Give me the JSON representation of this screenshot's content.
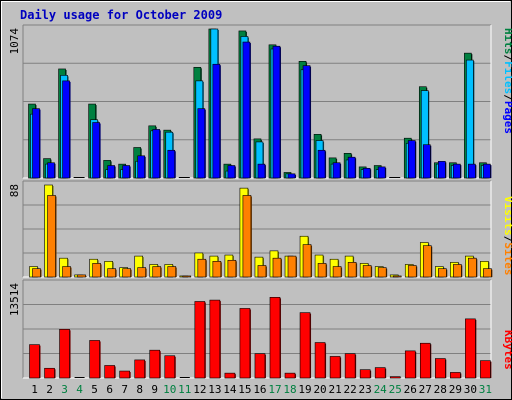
{
  "chart_data": [
    {
      "type": "bar",
      "panel": "hits-files-pages",
      "title": "Daily usage for October 2009",
      "categories": [
        "1",
        "2",
        "3",
        "4",
        "5",
        "6",
        "7",
        "8",
        "9",
        "10",
        "11",
        "12",
        "13",
        "14",
        "15",
        "16",
        "17",
        "18",
        "19",
        "20",
        "21",
        "22",
        "23",
        "24",
        "25",
        "26",
        "27",
        "28",
        "29",
        "30",
        "31"
      ],
      "weekend_days": [
        "3",
        "4",
        "10",
        "11",
        "17",
        "18",
        "24",
        "25",
        "31"
      ],
      "ymax_label": "1074",
      "ylim": [
        0,
        1074
      ],
      "grid": true,
      "legend": [
        "Pages",
        "Files",
        "Hits"
      ],
      "series": [
        {
          "name": "Hits",
          "color": "#008040",
          "values": [
            533,
            140,
            786,
            0,
            533,
            127,
            100,
            220,
            376,
            345,
            0,
            798,
            1074,
            100,
            1060,
            282,
            960,
            40,
            841,
            315,
            145,
            178,
            80,
            90,
            0,
            287,
            658,
            110,
            110,
            900,
            110
          ]
        },
        {
          "name": "Files",
          "color": "#00C0FF",
          "values": [
            460,
            100,
            740,
            0,
            420,
            60,
            60,
            120,
            340,
            330,
            0,
            700,
            1074,
            50,
            1020,
            260,
            930,
            30,
            780,
            270,
            100,
            130,
            60,
            60,
            0,
            250,
            630,
            100,
            90,
            850,
            90
          ]
        },
        {
          "name": "Pages",
          "color": "#0000FF",
          "values": [
            500,
            110,
            700,
            0,
            400,
            90,
            90,
            160,
            350,
            200,
            0,
            500,
            820,
            90,
            980,
            100,
            950,
            30,
            810,
            200,
            110,
            150,
            70,
            80,
            0,
            270,
            240,
            120,
            100,
            100,
            100
          ]
        }
      ]
    },
    {
      "type": "bar",
      "panel": "visits-sites",
      "categories": [
        "1",
        "2",
        "3",
        "4",
        "5",
        "6",
        "7",
        "8",
        "9",
        "10",
        "11",
        "12",
        "13",
        "14",
        "15",
        "16",
        "17",
        "18",
        "19",
        "20",
        "21",
        "22",
        "23",
        "24",
        "25",
        "26",
        "27",
        "28",
        "29",
        "30",
        "31"
      ],
      "ymax_label": "88",
      "ylim": [
        0,
        88
      ],
      "grid": true,
      "legend": [
        "Sites",
        "Visits"
      ],
      "series": [
        {
          "name": "Visits",
          "color": "#FFFF00",
          "values": [
            10,
            88,
            18,
            2,
            17,
            15,
            9,
            20,
            12,
            12,
            1,
            23,
            20,
            21,
            85,
            19,
            25,
            20,
            39,
            21,
            17,
            20,
            13,
            10,
            2,
            12,
            33,
            10,
            14,
            20,
            15
          ]
        },
        {
          "name": "Sites",
          "color": "#FF8000",
          "values": [
            8,
            78,
            10,
            2,
            13,
            8,
            8,
            9,
            10,
            10,
            1,
            17,
            15,
            16,
            78,
            11,
            18,
            20,
            31,
            13,
            10,
            14,
            11,
            9,
            1,
            11,
            30,
            8,
            12,
            18,
            8
          ]
        }
      ]
    },
    {
      "type": "bar",
      "panel": "kbytes",
      "categories": [
        "1",
        "2",
        "3",
        "4",
        "5",
        "6",
        "7",
        "8",
        "9",
        "10",
        "11",
        "12",
        "13",
        "14",
        "15",
        "16",
        "17",
        "18",
        "19",
        "20",
        "21",
        "22",
        "23",
        "24",
        "25",
        "26",
        "27",
        "28",
        "29",
        "30",
        "31"
      ],
      "ymax_label": "13514",
      "ylim": [
        0,
        13514
      ],
      "grid": true,
      "legend": [
        "KBytes"
      ],
      "series": [
        {
          "name": "KBytes",
          "color": "#FF0000",
          "values": [
            4800,
            1400,
            7000,
            0,
            5400,
            1800,
            1000,
            2600,
            4000,
            3200,
            0,
            11000,
            11200,
            700,
            10000,
            3500,
            11600,
            700,
            9400,
            5100,
            3100,
            3500,
            1200,
            1500,
            200,
            3900,
            5000,
            2800,
            800,
            8500,
            2500
          ]
        }
      ]
    }
  ]
}
